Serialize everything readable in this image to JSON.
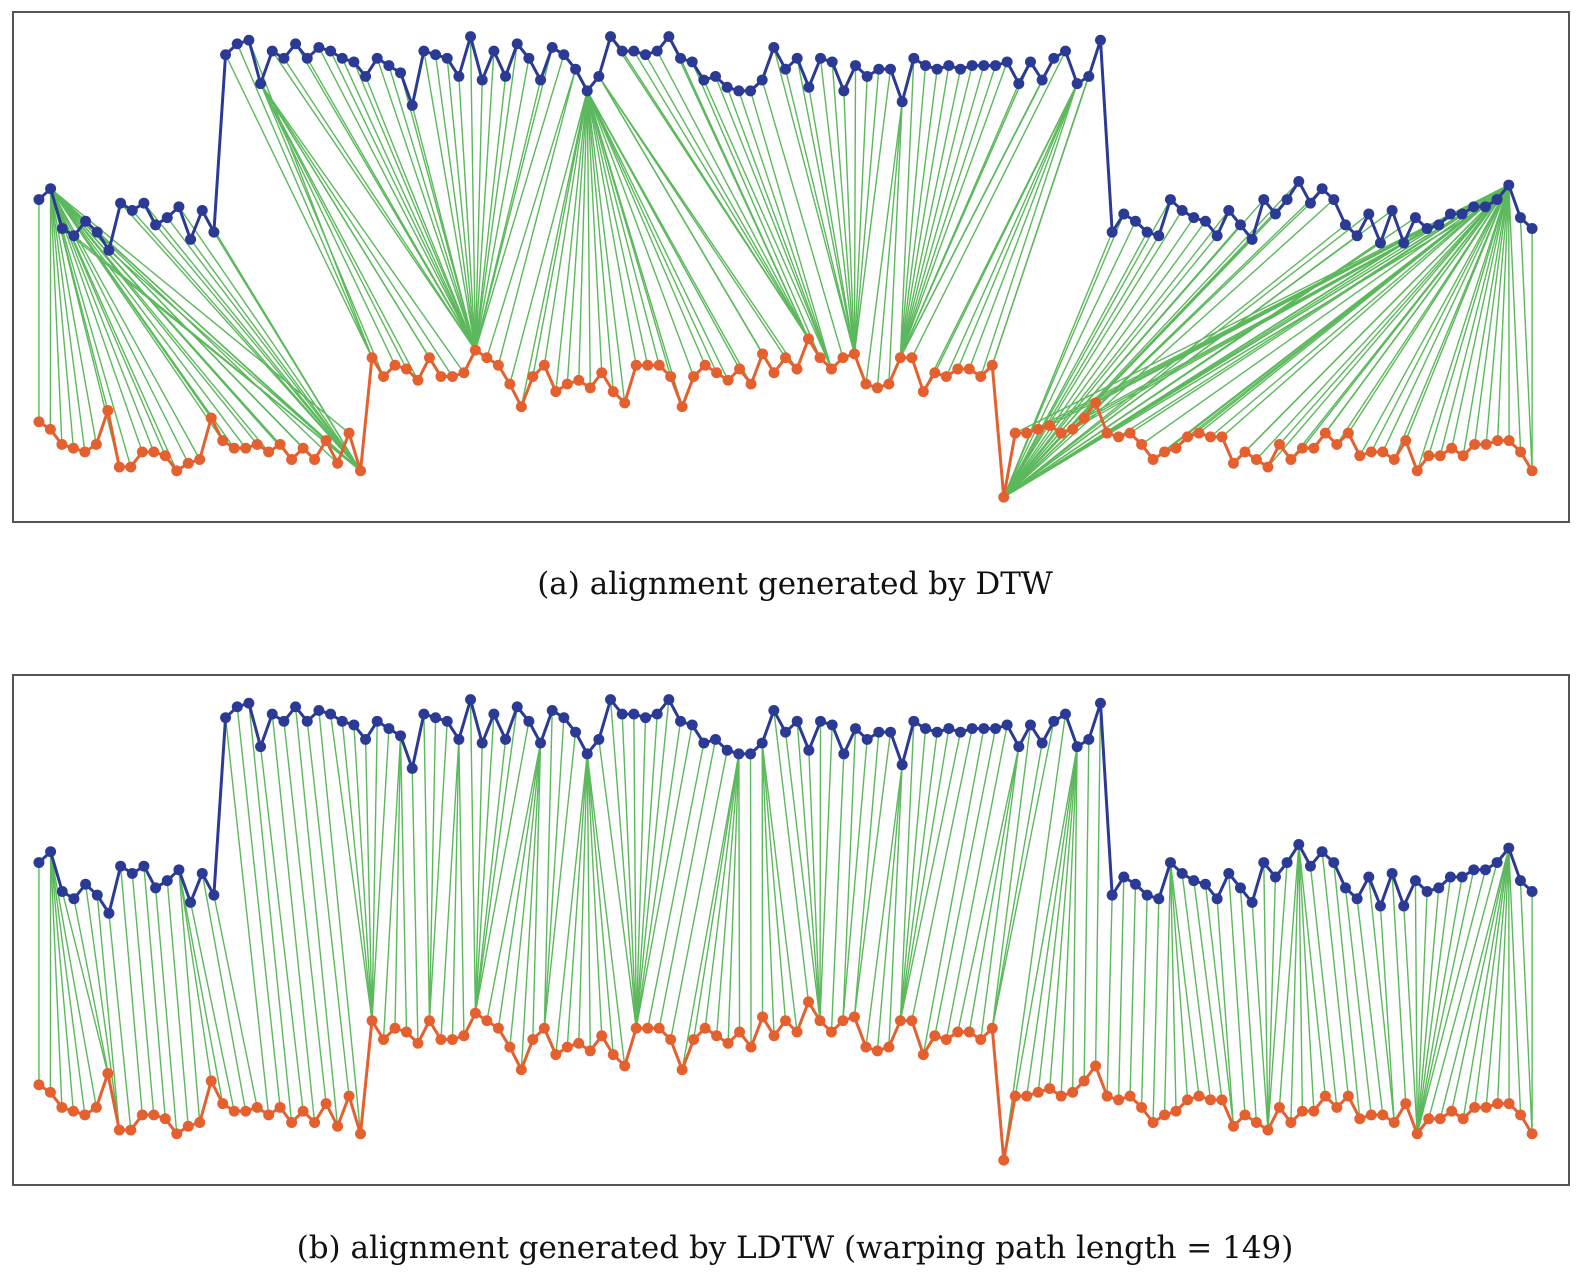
{
  "chart_data": [
    {
      "type": "line",
      "caption": "(a) alignment generated by DTW",
      "description_series": [
        {
          "name": "",
          "color": "#2b3a94",
          "role": "query",
          "values": [
            0.8,
            0.83,
            0.72,
            0.7,
            0.74,
            0.71,
            0.66,
            0.79,
            0.77,
            0.79,
            0.73,
            0.75,
            0.78,
            0.69,
            0.77,
            0.71,
            1.2,
            1.23,
            1.24,
            1.12,
            1.21,
            1.19,
            1.23,
            1.19,
            1.22,
            1.21,
            1.19,
            1.18,
            1.14,
            1.19,
            1.17,
            1.15,
            1.06,
            1.21,
            1.2,
            1.19,
            1.14,
            1.25,
            1.13,
            1.21,
            1.14,
            1.23,
            1.19,
            1.13,
            1.22,
            1.2,
            1.16,
            1.1,
            1.14,
            1.25,
            1.21,
            1.21,
            1.2,
            1.21,
            1.25,
            1.19,
            1.18,
            1.13,
            1.14,
            1.11,
            1.1,
            1.1,
            1.13,
            1.22,
            1.16,
            1.19,
            1.11,
            1.19,
            1.18,
            1.1,
            1.17,
            1.14,
            1.16,
            1.16,
            1.07,
            1.19,
            1.17,
            1.16,
            1.17,
            1.16,
            1.17,
            1.17,
            1.17,
            1.18,
            1.12,
            1.18,
            1.13,
            1.19,
            1.21,
            1.12,
            1.14,
            1.24,
            0.71,
            0.76,
            0.74,
            0.71,
            0.7,
            0.8,
            0.77,
            0.75,
            0.74,
            0.7,
            0.77,
            0.73,
            0.69,
            0.8,
            0.76,
            0.8,
            0.85,
            0.79,
            0.83,
            0.8,
            0.73,
            0.7,
            0.76,
            0.68,
            0.77,
            0.68,
            0.75,
            0.72,
            0.73,
            0.76,
            0.76,
            0.78,
            0.78,
            0.8,
            0.84,
            0.75,
            0.72
          ]
        },
        {
          "name": "",
          "color": "#e5602f",
          "role": "reference",
          "values": [
            0.2,
            0.18,
            0.14,
            0.13,
            0.12,
            0.14,
            0.23,
            0.08,
            0.08,
            0.12,
            0.12,
            0.11,
            0.07,
            0.09,
            0.1,
            0.21,
            0.15,
            0.13,
            0.13,
            0.14,
            0.12,
            0.14,
            0.1,
            0.13,
            0.1,
            0.15,
            0.09,
            0.17,
            0.07,
            0.37,
            0.32,
            0.35,
            0.34,
            0.31,
            0.37,
            0.32,
            0.32,
            0.33,
            0.39,
            0.37,
            0.35,
            0.3,
            0.24,
            0.32,
            0.35,
            0.28,
            0.3,
            0.31,
            0.29,
            0.33,
            0.28,
            0.25,
            0.35,
            0.35,
            0.35,
            0.32,
            0.24,
            0.32,
            0.35,
            0.33,
            0.31,
            0.34,
            0.3,
            0.38,
            0.33,
            0.37,
            0.34,
            0.42,
            0.37,
            0.34,
            0.37,
            0.38,
            0.3,
            0.29,
            0.3,
            0.37,
            0.37,
            0.28,
            0.33,
            0.32,
            0.34,
            0.34,
            0.32,
            0.35,
            0.0,
            0.17,
            0.17,
            0.18,
            0.19,
            0.17,
            0.18,
            0.21,
            0.25,
            0.17,
            0.16,
            0.17,
            0.14,
            0.1,
            0.12,
            0.13,
            0.16,
            0.17,
            0.16,
            0.16,
            0.09,
            0.12,
            0.1,
            0.08,
            0.14,
            0.1,
            0.13,
            0.13,
            0.17,
            0.14,
            0.17,
            0.11,
            0.12,
            0.12,
            0.1,
            0.15,
            0.07,
            0.11,
            0.11,
            0.13,
            0.11,
            0.14,
            0.14,
            0.15,
            0.15,
            0.12,
            0.07
          ]
        }
      ],
      "alignment": "dtw"
    },
    {
      "type": "line",
      "caption": "(b) alignment generated by LDTW (warping path length = 149)",
      "description_series": "same as panel (a)",
      "alignment": "ldtw"
    }
  ],
  "captions": {
    "a": "(a) alignment generated by DTW",
    "b": "(b) alignment generated by LDTW (warping path length = 149)"
  },
  "colors": {
    "query": "#2b3a94",
    "reference": "#e5602f",
    "link": "#5cb85c",
    "frame": "#555555"
  }
}
